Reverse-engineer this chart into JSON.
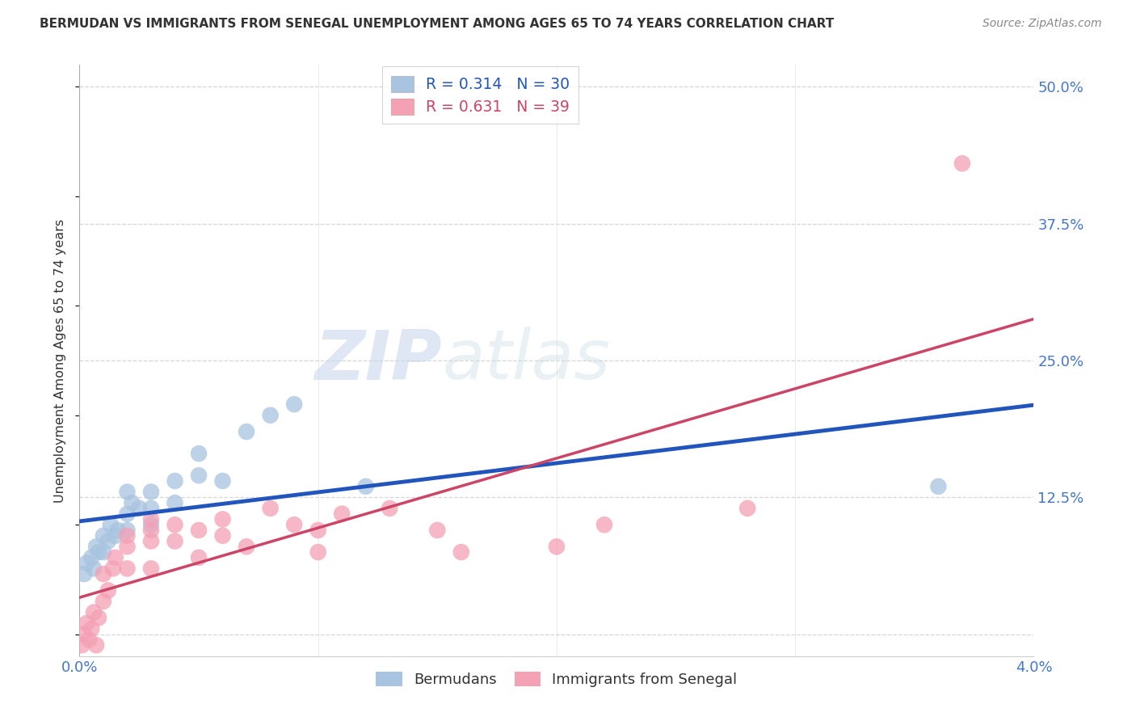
{
  "title": "BERMUDAN VS IMMIGRANTS FROM SENEGAL UNEMPLOYMENT AMONG AGES 65 TO 74 YEARS CORRELATION CHART",
  "source": "Source: ZipAtlas.com",
  "ylabel": "Unemployment Among Ages 65 to 74 years",
  "xlim": [
    0.0,
    0.04
  ],
  "ylim": [
    -0.02,
    0.52
  ],
  "yticks": [
    0.0,
    0.125,
    0.25,
    0.375,
    0.5
  ],
  "ytick_labels": [
    "",
    "12.5%",
    "25.0%",
    "37.5%",
    "50.0%"
  ],
  "xticks": [
    0.0,
    0.01,
    0.02,
    0.03,
    0.04
  ],
  "xtick_labels": [
    "0.0%",
    "",
    "",
    "",
    "4.0%"
  ],
  "bermuda_color": "#a8c4e0",
  "senegal_color": "#f4a0b5",
  "bermuda_line_color": "#2255bb",
  "senegal_line_color": "#cc4466",
  "legend_R_bermuda": "0.314",
  "legend_N_bermuda": "30",
  "legend_R_senegal": "0.631",
  "legend_N_senegal": "39",
  "watermark_zip": "ZIP",
  "watermark_atlas": "atlas",
  "legend_label_bermuda": "Bermudans",
  "legend_label_senegal": "Immigrants from Senegal",
  "bermuda_x": [
    0.0002,
    0.0003,
    0.0005,
    0.0006,
    0.0007,
    0.0008,
    0.001,
    0.001,
    0.0012,
    0.0013,
    0.0015,
    0.0016,
    0.002,
    0.002,
    0.002,
    0.0022,
    0.0025,
    0.003,
    0.003,
    0.003,
    0.004,
    0.004,
    0.005,
    0.005,
    0.006,
    0.007,
    0.008,
    0.009,
    0.036,
    0.012
  ],
  "bermuda_y": [
    0.055,
    0.065,
    0.07,
    0.06,
    0.08,
    0.075,
    0.09,
    0.075,
    0.085,
    0.1,
    0.09,
    0.095,
    0.11,
    0.13,
    0.095,
    0.12,
    0.115,
    0.13,
    0.115,
    0.1,
    0.12,
    0.14,
    0.145,
    0.165,
    0.14,
    0.185,
    0.2,
    0.21,
    0.135,
    0.135
  ],
  "senegal_x": [
    0.0001,
    0.0002,
    0.0003,
    0.0004,
    0.0005,
    0.0006,
    0.0007,
    0.0008,
    0.001,
    0.001,
    0.0012,
    0.0014,
    0.0015,
    0.002,
    0.002,
    0.002,
    0.003,
    0.003,
    0.003,
    0.003,
    0.004,
    0.004,
    0.005,
    0.005,
    0.006,
    0.006,
    0.007,
    0.008,
    0.009,
    0.01,
    0.01,
    0.011,
    0.013,
    0.015,
    0.016,
    0.02,
    0.022,
    0.028,
    0.037
  ],
  "senegal_y": [
    -0.01,
    0.0,
    0.01,
    -0.005,
    0.005,
    0.02,
    -0.01,
    0.015,
    0.03,
    0.055,
    0.04,
    0.06,
    0.07,
    0.06,
    0.08,
    0.09,
    0.06,
    0.085,
    0.095,
    0.105,
    0.085,
    0.1,
    0.07,
    0.095,
    0.09,
    0.105,
    0.08,
    0.115,
    0.1,
    0.095,
    0.075,
    0.11,
    0.115,
    0.095,
    0.075,
    0.08,
    0.1,
    0.115,
    0.43
  ],
  "grid_color": "#cccccc",
  "background_color": "#ffffff",
  "title_color": "#333333",
  "axis_tick_color": "#4477cc"
}
